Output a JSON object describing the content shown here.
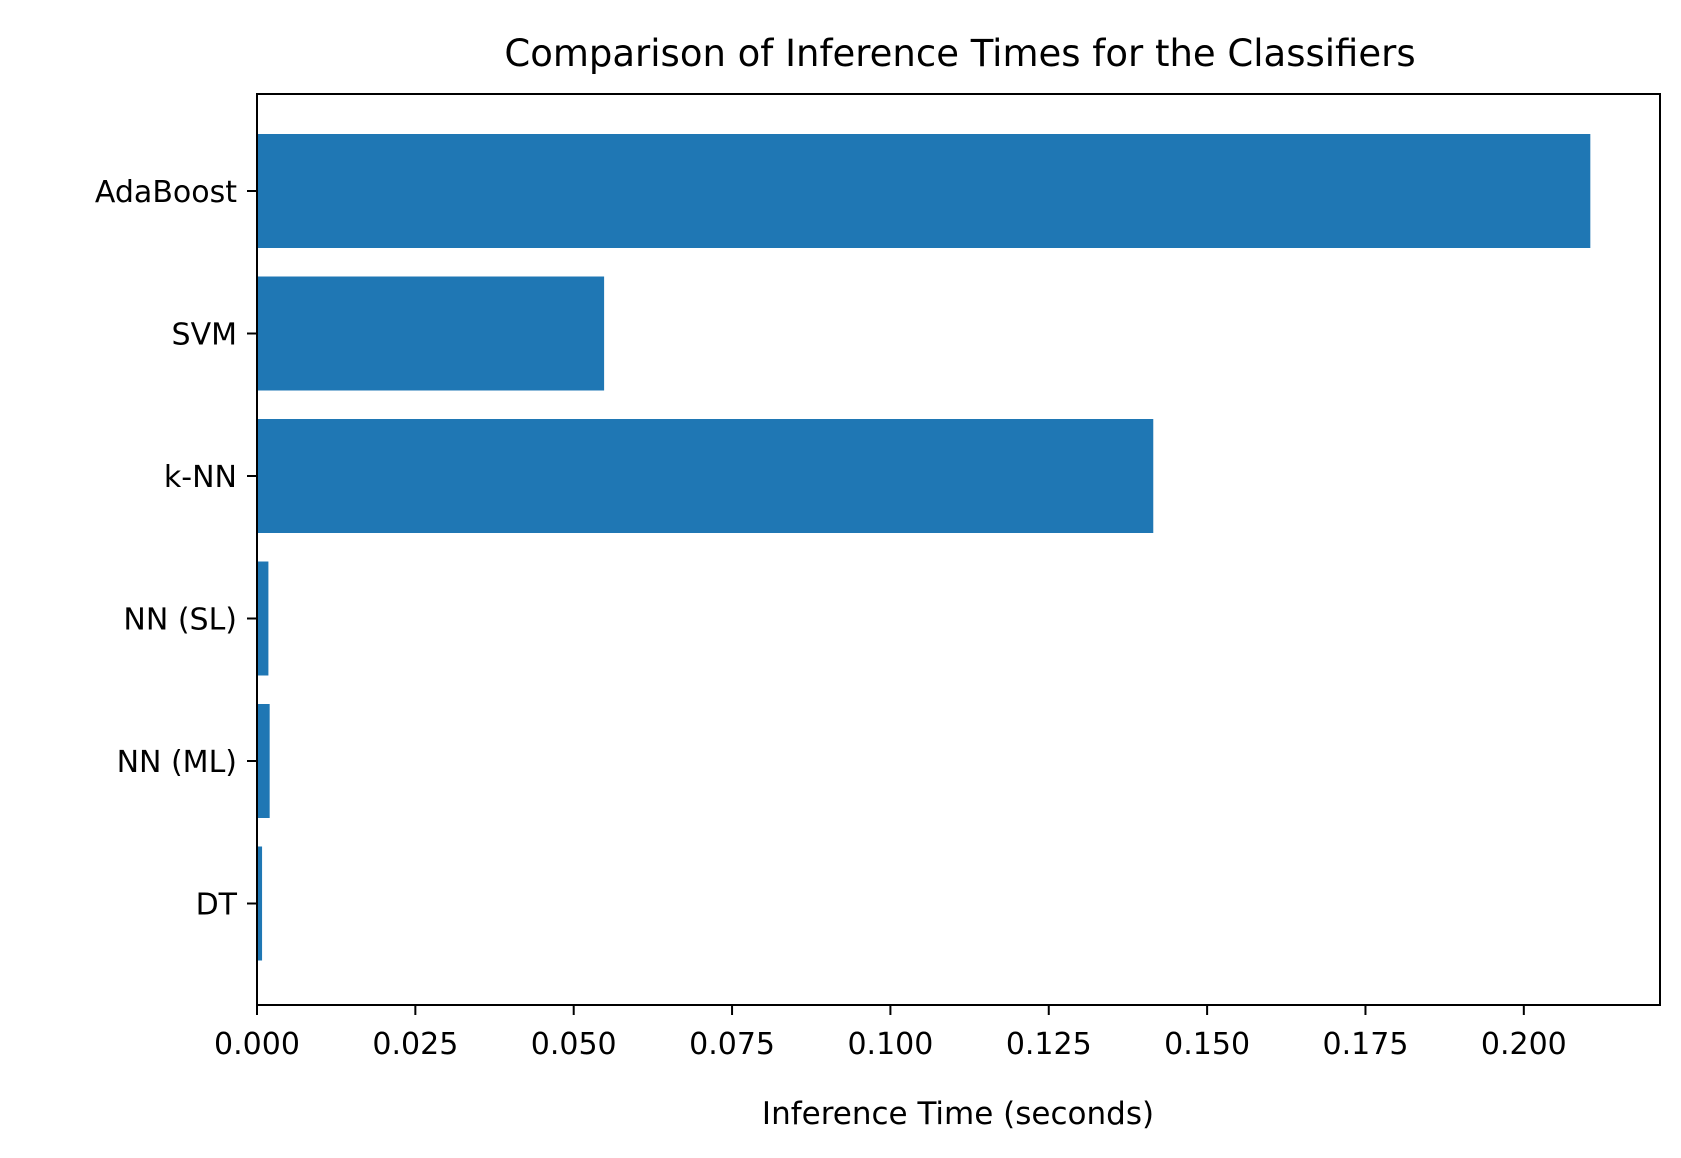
{
  "chart_data": {
    "type": "bar",
    "orientation": "horizontal",
    "title": "Comparison of Inference Times for the Classifiers",
    "xlabel": "Inference Time (seconds)",
    "ylabel": "",
    "categories": [
      "AdaBoost",
      "SVM",
      "k-NN",
      "NN (SL)",
      "NN (ML)",
      "DT"
    ],
    "values": [
      0.2105,
      0.0548,
      0.1415,
      0.0018,
      0.002,
      0.0008
    ],
    "xlim": [
      0,
      0.2215
    ],
    "xticks": [
      0.0,
      0.025,
      0.05,
      0.075,
      0.1,
      0.125,
      0.15,
      0.175,
      0.2
    ],
    "xtick_labels": [
      "0.000",
      "0.025",
      "0.050",
      "0.075",
      "0.100",
      "0.125",
      "0.150",
      "0.175",
      "0.200"
    ],
    "bar_color": "#1f77b4",
    "grid": false,
    "legend": "none"
  }
}
